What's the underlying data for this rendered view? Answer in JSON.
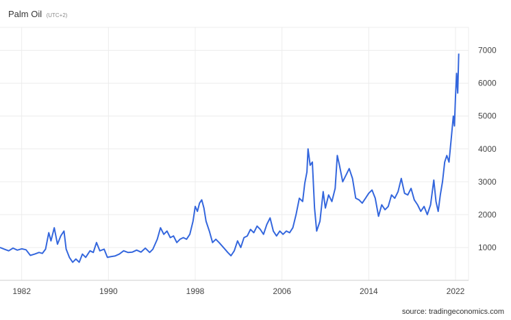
{
  "header": {
    "title": "Palm Oil",
    "timezone": "(UTC+2)"
  },
  "source": "source: tradingeconomics.com",
  "colors": {
    "line": "#3366dd",
    "grid": "#ececec",
    "axis": "#cccccc",
    "tick_text": "#444444"
  },
  "chart_data": {
    "type": "line",
    "title": "Palm Oil",
    "xlabel": "",
    "ylabel": "",
    "xlim": [
      1980,
      2023.2
    ],
    "ylim": [
      0,
      7700
    ],
    "grid": true,
    "legend": "none",
    "x_ticks": [
      {
        "value": 1982,
        "label": "1982"
      },
      {
        "value": 1990,
        "label": "1990"
      },
      {
        "value": 1998,
        "label": "1998"
      },
      {
        "value": 2006,
        "label": "2006"
      },
      {
        "value": 2014,
        "label": "2014"
      },
      {
        "value": 2022,
        "label": "2022"
      }
    ],
    "y_ticks": [
      {
        "value": 1000,
        "label": "1000"
      },
      {
        "value": 2000,
        "label": "2000"
      },
      {
        "value": 3000,
        "label": "3000"
      },
      {
        "value": 4000,
        "label": "4000"
      },
      {
        "value": 5000,
        "label": "5000"
      },
      {
        "value": 6000,
        "label": "6000"
      },
      {
        "value": 7000,
        "label": "7000"
      }
    ],
    "series": [
      {
        "name": "",
        "points": [
          [
            1980.0,
            1000
          ],
          [
            1980.4,
            950
          ],
          [
            1980.8,
            900
          ],
          [
            1981.2,
            980
          ],
          [
            1981.6,
            920
          ],
          [
            1982.0,
            960
          ],
          [
            1982.4,
            930
          ],
          [
            1982.8,
            760
          ],
          [
            1983.2,
            800
          ],
          [
            1983.6,
            850
          ],
          [
            1983.9,
            820
          ],
          [
            1984.2,
            950
          ],
          [
            1984.5,
            1450
          ],
          [
            1984.7,
            1200
          ],
          [
            1985.0,
            1600
          ],
          [
            1985.3,
            1100
          ],
          [
            1985.6,
            1350
          ],
          [
            1985.9,
            1500
          ],
          [
            1986.1,
            950
          ],
          [
            1986.4,
            700
          ],
          [
            1986.7,
            550
          ],
          [
            1987.0,
            650
          ],
          [
            1987.3,
            550
          ],
          [
            1987.6,
            800
          ],
          [
            1987.9,
            700
          ],
          [
            1988.3,
            900
          ],
          [
            1988.6,
            850
          ],
          [
            1988.9,
            1150
          ],
          [
            1989.2,
            900
          ],
          [
            1989.6,
            950
          ],
          [
            1989.9,
            700
          ],
          [
            1990.2,
            720
          ],
          [
            1990.6,
            740
          ],
          [
            1991.0,
            800
          ],
          [
            1991.4,
            900
          ],
          [
            1991.8,
            850
          ],
          [
            1992.2,
            860
          ],
          [
            1992.6,
            920
          ],
          [
            1993.0,
            860
          ],
          [
            1993.4,
            980
          ],
          [
            1993.8,
            850
          ],
          [
            1994.1,
            950
          ],
          [
            1994.5,
            1250
          ],
          [
            1994.8,
            1600
          ],
          [
            1995.1,
            1400
          ],
          [
            1995.4,
            1500
          ],
          [
            1995.7,
            1300
          ],
          [
            1996.0,
            1350
          ],
          [
            1996.3,
            1150
          ],
          [
            1996.6,
            1250
          ],
          [
            1996.9,
            1300
          ],
          [
            1997.2,
            1250
          ],
          [
            1997.5,
            1400
          ],
          [
            1997.8,
            1800
          ],
          [
            1998.0,
            2250
          ],
          [
            1998.2,
            2100
          ],
          [
            1998.4,
            2350
          ],
          [
            1998.6,
            2450
          ],
          [
            1998.8,
            2200
          ],
          [
            1999.0,
            1800
          ],
          [
            1999.3,
            1500
          ],
          [
            1999.6,
            1150
          ],
          [
            1999.9,
            1250
          ],
          [
            2000.2,
            1150
          ],
          [
            2000.6,
            1000
          ],
          [
            2001.0,
            850
          ],
          [
            2001.3,
            750
          ],
          [
            2001.6,
            900
          ],
          [
            2001.9,
            1200
          ],
          [
            2002.2,
            1000
          ],
          [
            2002.5,
            1300
          ],
          [
            2002.8,
            1350
          ],
          [
            2003.1,
            1550
          ],
          [
            2003.4,
            1450
          ],
          [
            2003.7,
            1650
          ],
          [
            2004.0,
            1550
          ],
          [
            2004.3,
            1400
          ],
          [
            2004.6,
            1700
          ],
          [
            2004.9,
            1900
          ],
          [
            2005.2,
            1500
          ],
          [
            2005.5,
            1350
          ],
          [
            2005.8,
            1500
          ],
          [
            2006.1,
            1400
          ],
          [
            2006.4,
            1500
          ],
          [
            2006.7,
            1450
          ],
          [
            2007.0,
            1600
          ],
          [
            2007.3,
            2000
          ],
          [
            2007.6,
            2500
          ],
          [
            2007.9,
            2400
          ],
          [
            2008.1,
            2950
          ],
          [
            2008.3,
            3300
          ],
          [
            2008.4,
            4000
          ],
          [
            2008.6,
            3500
          ],
          [
            2008.8,
            3600
          ],
          [
            2009.0,
            2200
          ],
          [
            2009.2,
            1500
          ],
          [
            2009.5,
            1800
          ],
          [
            2009.8,
            2700
          ],
          [
            2010.0,
            2200
          ],
          [
            2010.3,
            2600
          ],
          [
            2010.6,
            2400
          ],
          [
            2010.9,
            2800
          ],
          [
            2011.1,
            3800
          ],
          [
            2011.3,
            3500
          ],
          [
            2011.6,
            3000
          ],
          [
            2011.9,
            3200
          ],
          [
            2012.2,
            3400
          ],
          [
            2012.5,
            3100
          ],
          [
            2012.8,
            2500
          ],
          [
            2013.1,
            2450
          ],
          [
            2013.4,
            2350
          ],
          [
            2013.7,
            2500
          ],
          [
            2014.0,
            2650
          ],
          [
            2014.3,
            2750
          ],
          [
            2014.6,
            2500
          ],
          [
            2014.9,
            1950
          ],
          [
            2015.2,
            2300
          ],
          [
            2015.5,
            2150
          ],
          [
            2015.8,
            2250
          ],
          [
            2016.1,
            2600
          ],
          [
            2016.4,
            2500
          ],
          [
            2016.7,
            2700
          ],
          [
            2017.0,
            3100
          ],
          [
            2017.3,
            2650
          ],
          [
            2017.6,
            2600
          ],
          [
            2017.9,
            2800
          ],
          [
            2018.2,
            2450
          ],
          [
            2018.5,
            2300
          ],
          [
            2018.8,
            2100
          ],
          [
            2019.1,
            2250
          ],
          [
            2019.4,
            2000
          ],
          [
            2019.7,
            2300
          ],
          [
            2020.0,
            3050
          ],
          [
            2020.2,
            2400
          ],
          [
            2020.4,
            2100
          ],
          [
            2020.6,
            2600
          ],
          [
            2020.8,
            3000
          ],
          [
            2021.0,
            3600
          ],
          [
            2021.2,
            3800
          ],
          [
            2021.4,
            3600
          ],
          [
            2021.6,
            4300
          ],
          [
            2021.8,
            5000
          ],
          [
            2021.9,
            4700
          ],
          [
            2022.0,
            5600
          ],
          [
            2022.1,
            6300
          ],
          [
            2022.2,
            5700
          ],
          [
            2022.3,
            6900
          ]
        ]
      }
    ]
  }
}
